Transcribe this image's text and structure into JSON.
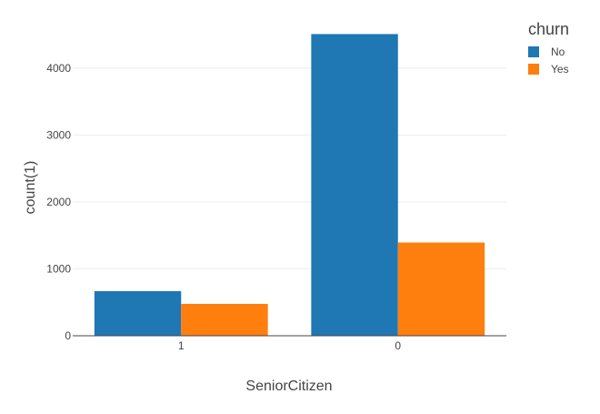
{
  "chart_data": {
    "type": "bar",
    "xlabel": "SeniorCitizen",
    "ylabel": "count(1)",
    "categories": [
      "1",
      "0"
    ],
    "series": [
      {
        "name": "No",
        "color": "#1f77b4",
        "values": [
          666,
          4508
        ]
      },
      {
        "name": "Yes",
        "color": "#ff7f0e",
        "values": [
          476,
          1393
        ]
      }
    ],
    "ylim": [
      0,
      4745
    ],
    "yticks": [
      0,
      1000,
      2000,
      3000,
      4000
    ],
    "grid": true,
    "legend": {
      "title": "churn",
      "placement": "top-right"
    }
  }
}
